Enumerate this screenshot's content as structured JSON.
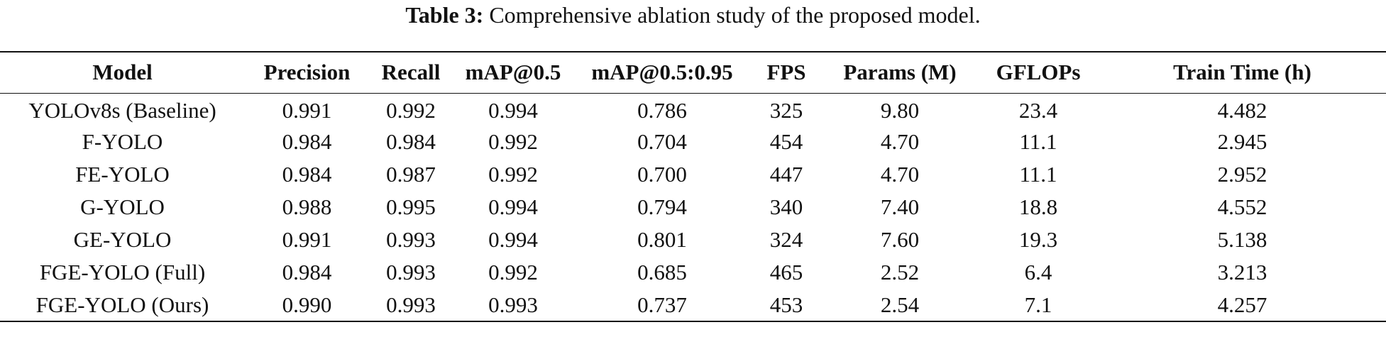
{
  "caption": {
    "label": "Table 3:",
    "text": "Comprehensive ablation study of the proposed model."
  },
  "table": {
    "headers": [
      "Model",
      "Precision",
      "Recall",
      "mAP@0.5",
      "mAP@0.5:0.95",
      "FPS",
      "Params (M)",
      "GFLOPs",
      "Train Time (h)"
    ],
    "rows": [
      [
        "YOLOv8s (Baseline)",
        "0.991",
        "0.992",
        "0.994",
        "0.786",
        "325",
        "9.80",
        "23.4",
        "4.482"
      ],
      [
        "F-YOLO",
        "0.984",
        "0.984",
        "0.992",
        "0.704",
        "454",
        "4.70",
        "11.1",
        "2.945"
      ],
      [
        "FE-YOLO",
        "0.984",
        "0.987",
        "0.992",
        "0.700",
        "447",
        "4.70",
        "11.1",
        "2.952"
      ],
      [
        "G-YOLO",
        "0.988",
        "0.995",
        "0.994",
        "0.794",
        "340",
        "7.40",
        "18.8",
        "4.552"
      ],
      [
        "GE-YOLO",
        "0.991",
        "0.993",
        "0.994",
        "0.801",
        "324",
        "7.60",
        "19.3",
        "5.138"
      ],
      [
        "FGE-YOLO (Full)",
        "0.984",
        "0.993",
        "0.992",
        "0.685",
        "465",
        "2.52",
        "6.4",
        "3.213"
      ],
      [
        "FGE-YOLO (Ours)",
        "0.990",
        "0.993",
        "0.993",
        "0.737",
        "453",
        "2.54",
        "7.1",
        "4.257"
      ]
    ]
  }
}
